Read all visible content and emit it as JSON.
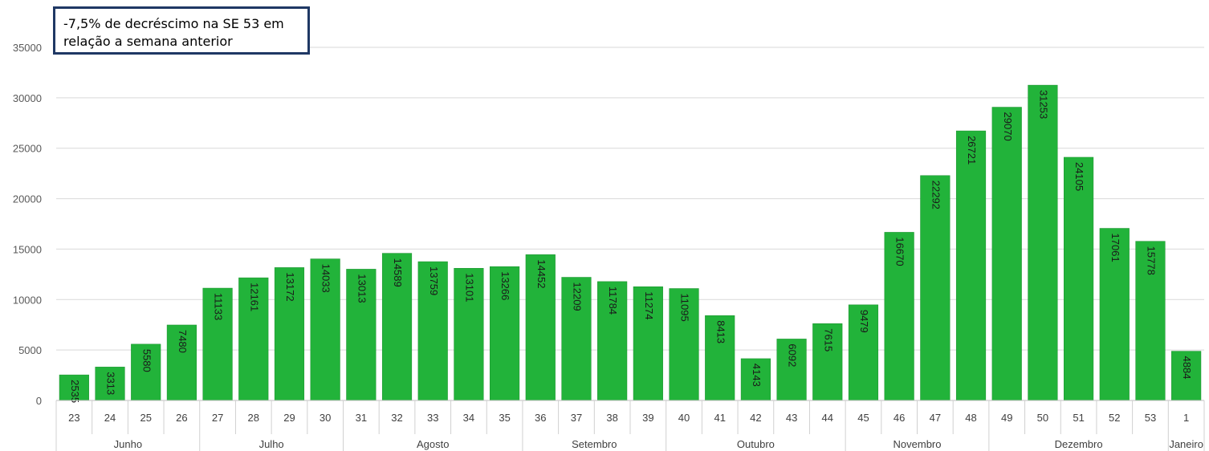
{
  "chart_data": {
    "type": "bar",
    "title": "",
    "xlabel": "",
    "ylabel": "",
    "ylim": [
      0,
      35000
    ],
    "yticks": [
      0,
      5000,
      10000,
      15000,
      20000,
      25000,
      30000,
      35000
    ],
    "grid": true,
    "legend": "none",
    "bar_color": "#22b33a",
    "categories": [
      "23",
      "24",
      "25",
      "26",
      "27",
      "28",
      "29",
      "30",
      "31",
      "32",
      "33",
      "34",
      "35",
      "36",
      "37",
      "38",
      "39",
      "40",
      "41",
      "42",
      "43",
      "44",
      "45",
      "46",
      "47",
      "48",
      "49",
      "50",
      "51",
      "52",
      "53",
      "1"
    ],
    "values": [
      2535,
      3313,
      5580,
      7480,
      11133,
      12161,
      13172,
      14033,
      13013,
      14589,
      13759,
      13101,
      13266,
      14452,
      12209,
      11784,
      11274,
      11095,
      8413,
      4143,
      6092,
      7615,
      9479,
      16670,
      22292,
      26721,
      29070,
      31253,
      24105,
      17061,
      15778,
      4884
    ],
    "month_groups": [
      {
        "label": "Junho",
        "count": 4
      },
      {
        "label": "Julho",
        "count": 4
      },
      {
        "label": "Agosto",
        "count": 5
      },
      {
        "label": "Setembro",
        "count": 4
      },
      {
        "label": "Outubro",
        "count": 5
      },
      {
        "label": "Novembro",
        "count": 4
      },
      {
        "label": "Dezembro",
        "count": 5
      },
      {
        "label": "Janeiro",
        "count": 1
      }
    ],
    "annotation": {
      "line1": "-7,5% de decréscimo na SE 53  em",
      "line2": "relação a semana anterior"
    }
  }
}
